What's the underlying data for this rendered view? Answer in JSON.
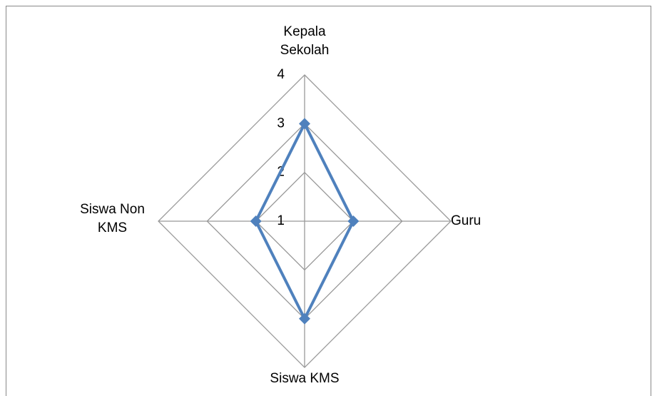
{
  "chart_data": {
    "type": "radar",
    "categories": [
      "Kepala Sekolah",
      "Guru",
      "Siswa KMS",
      "Siswa Non KMS"
    ],
    "series": [
      {
        "color": "#4f81bd",
        "values": [
          3,
          2,
          3,
          2
        ]
      }
    ],
    "ylim": [
      1,
      4
    ],
    "yticks": [
      1,
      2,
      3,
      4
    ],
    "grid": true
  }
}
